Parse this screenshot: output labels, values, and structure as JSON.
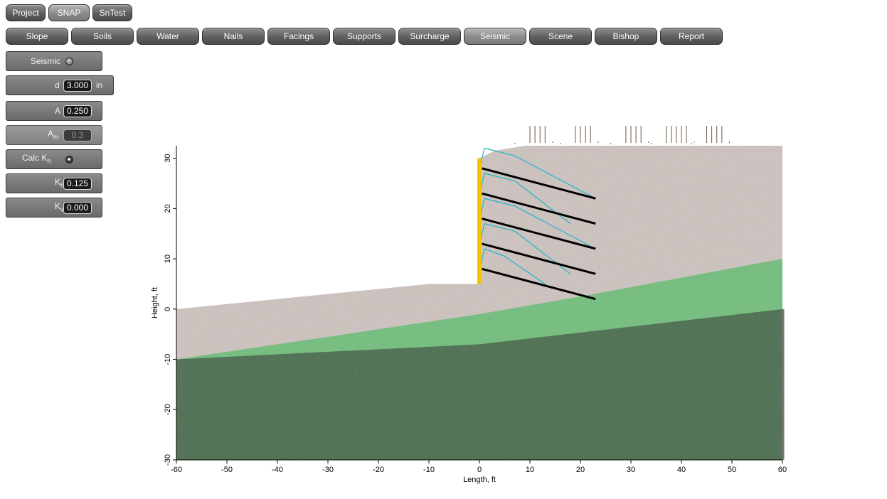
{
  "top_tabs": [
    {
      "label": "Project",
      "active": false
    },
    {
      "label": "SNAP",
      "active": true
    },
    {
      "label": "SnTest",
      "active": false
    }
  ],
  "module_tabs": [
    {
      "label": "Slope",
      "active": false
    },
    {
      "label": "Soils",
      "active": false
    },
    {
      "label": "Water",
      "active": false
    },
    {
      "label": "Nails",
      "active": false
    },
    {
      "label": "Facings",
      "active": false
    },
    {
      "label": "Supports",
      "active": false
    },
    {
      "label": "Surcharge",
      "active": false
    },
    {
      "label": "Seismic",
      "active": true
    },
    {
      "label": "Scene",
      "active": false
    },
    {
      "label": "Bishop",
      "active": false
    },
    {
      "label": "Report",
      "active": false
    }
  ],
  "panel": {
    "seismic_label": "Seismic",
    "seismic_on": false,
    "d_label": "d",
    "d_value": "3.000",
    "d_unit": "in",
    "A_label": "A",
    "A_value": "0.250",
    "Am_label": "A",
    "Am_sub": "m",
    "Am_value": "0.3",
    "calc_label": "Calc K",
    "calc_sub": "h",
    "calc_on": true,
    "Kh_label": "K",
    "Kh_sub": "h",
    "Kh_value": "0.125",
    "Kv_label": "K",
    "Kv_sub": "v",
    "Kv_value": "0.000"
  },
  "plot": {
    "xlabel": "Length, ft",
    "ylabel": "Height, ft",
    "xlim": [
      -60,
      60
    ],
    "ylim": [
      -30,
      32.5
    ],
    "xticks": [
      "-60",
      "-50",
      "-40",
      "-30",
      "-20",
      "-10",
      "0",
      "10",
      "20",
      "30",
      "40",
      "50",
      "60"
    ],
    "yticks": [
      "-30",
      "-20",
      "-10",
      "0",
      "10",
      "20",
      "30"
    ],
    "colors": {
      "bedrock": "#3f6b45",
      "weathered": "#6fbe7a",
      "fill_soil": "#cdc3bf",
      "facing": "#f2c400",
      "nail": "#000000",
      "slip_surface": "#1fb5c7",
      "surcharge": "#6b5a3a"
    },
    "layers": {
      "bedrock_top": [
        [
          -60,
          -10
        ],
        [
          0,
          -7
        ],
        [
          60,
          0
        ]
      ],
      "weathered_top": [
        [
          -60,
          -10
        ],
        [
          0,
          -1
        ],
        [
          20,
          2.5
        ],
        [
          60,
          10
        ]
      ],
      "ground_surface": [
        [
          -60,
          0
        ],
        [
          -10,
          5
        ],
        [
          0,
          5
        ],
        [
          0,
          30
        ],
        [
          3,
          31.5
        ],
        [
          9,
          32.5
        ],
        [
          60,
          32.5
        ]
      ]
    },
    "wall": {
      "x": 0,
      "y_bottom": 5,
      "y_top": 30
    },
    "nails": [
      {
        "x0": 0.5,
        "y0": 28,
        "x1": 23,
        "y1": 22
      },
      {
        "x0": 0.5,
        "y0": 23,
        "x1": 23,
        "y1": 17
      },
      {
        "x0": 0.5,
        "y0": 18,
        "x1": 23,
        "y1": 12
      },
      {
        "x0": 0.5,
        "y0": 13,
        "x1": 23,
        "y1": 7
      },
      {
        "x0": 0.5,
        "y0": 8,
        "x1": 23,
        "y1": 2
      }
    ],
    "slip_surfaces": [
      [
        [
          0,
          28
        ],
        [
          1,
          32
        ],
        [
          7,
          30.5
        ],
        [
          23,
          22
        ]
      ],
      [
        [
          0,
          23
        ],
        [
          1,
          27
        ],
        [
          7,
          25.5
        ],
        [
          18,
          17
        ]
      ],
      [
        [
          0,
          18
        ],
        [
          1,
          22
        ],
        [
          7,
          20.5
        ],
        [
          23,
          12
        ]
      ],
      [
        [
          0,
          13
        ],
        [
          1,
          17
        ],
        [
          7,
          15.5
        ],
        [
          18,
          7
        ]
      ],
      [
        [
          0,
          8
        ],
        [
          1,
          12
        ],
        [
          5,
          10.5
        ],
        [
          13,
          5
        ]
      ]
    ],
    "surcharge_groups_x": [
      [
        10,
        11,
        12,
        13
      ],
      [
        19,
        20,
        21,
        22
      ],
      [
        29,
        30,
        31,
        32
      ],
      [
        37,
        38,
        39,
        40,
        41
      ],
      [
        45,
        46,
        47,
        48
      ]
    ]
  }
}
